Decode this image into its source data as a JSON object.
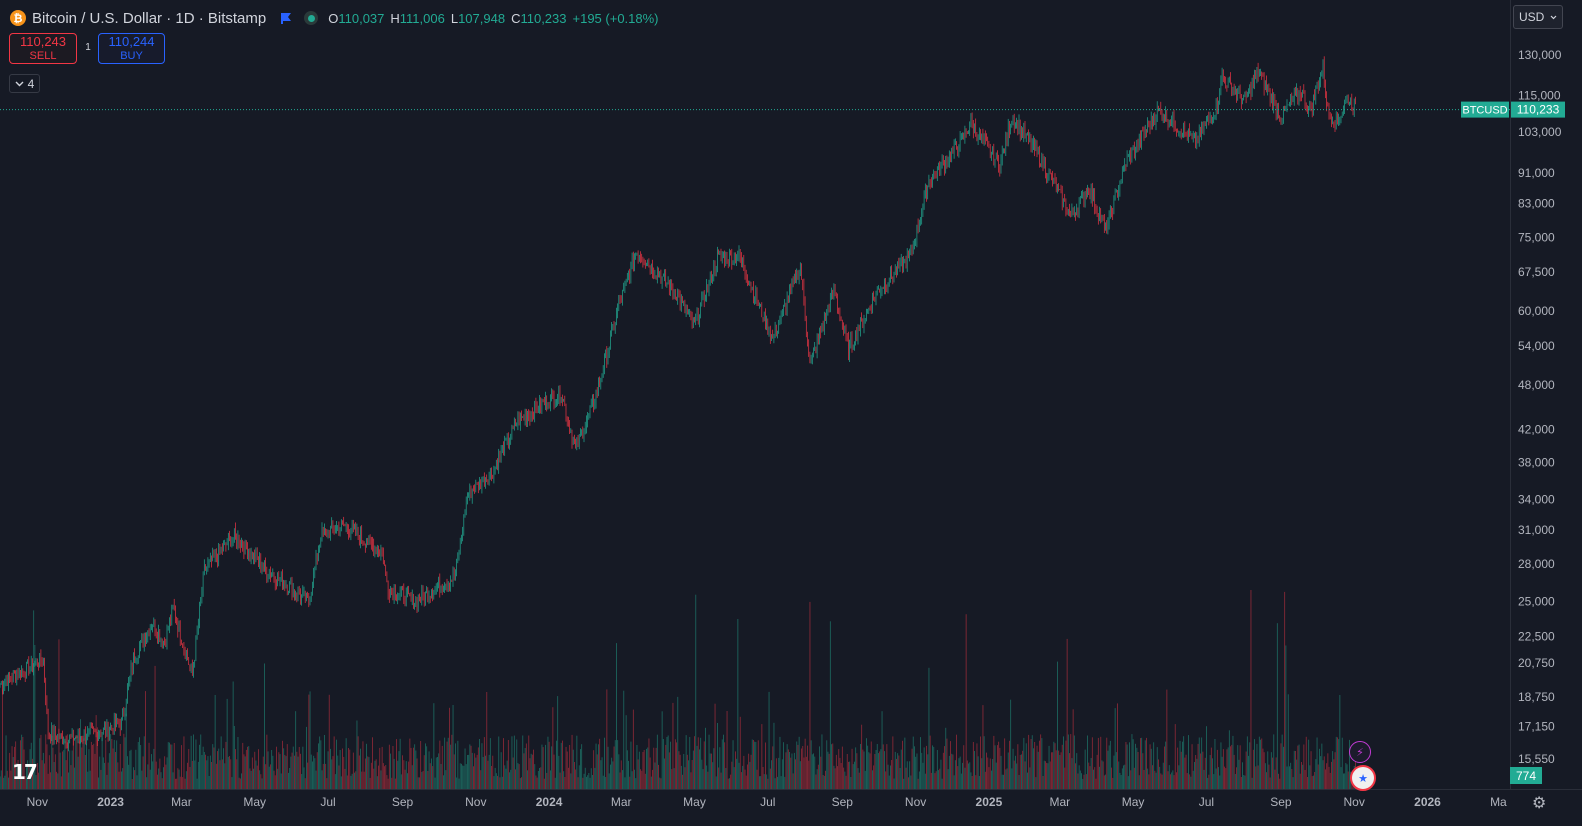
{
  "header": {
    "coin_icon": "bitcoin-icon",
    "symbol_title": "Bitcoin / U.S. Dollar · 1D · Bitstamp",
    "ohlc": {
      "o_label": "O",
      "o": "110,037",
      "h_label": "H",
      "h": "111,006",
      "l_label": "L",
      "l": "107,948",
      "c_label": "C",
      "c": "110,233",
      "change": "+195 (+0.18%)"
    },
    "up_color": "#22ab94",
    "down_color": "#f23645"
  },
  "trade": {
    "sell_price": "110,243",
    "sell_label": "SELL",
    "spread": "1",
    "buy_price": "110,244",
    "buy_label": "BUY"
  },
  "indicators_toggle": {
    "icon": "chevron-down-icon",
    "count": "4"
  },
  "currency_select": {
    "value": "USD"
  },
  "price_tags": {
    "symbol": "BTCUSD",
    "price": "110,233",
    "volume": "774"
  },
  "chart_data": {
    "type": "candlestick",
    "scale": "log",
    "ylim": [
      14500,
      136000
    ],
    "y_ticks": [
      "130,000",
      "115,000",
      "103,000",
      "91,000",
      "83,000",
      "75,000",
      "67,500",
      "60,000",
      "54,000",
      "48,000",
      "42,000",
      "38,000",
      "34,000",
      "31,000",
      "28,000",
      "25,000",
      "22,500",
      "20,750",
      "18,750",
      "17,150",
      "15,550"
    ],
    "x_ticks": [
      "Nov",
      "2023",
      "Mar",
      "May",
      "Jul",
      "Sep",
      "Nov",
      "2024",
      "Mar",
      "May",
      "Jul",
      "Sep",
      "Nov",
      "2025",
      "Mar",
      "May",
      "Jul",
      "Sep",
      "Nov",
      "2026",
      "Ma"
    ],
    "last_price": 110233,
    "volume_last": 774,
    "price_path": [
      [
        "2022-10-01",
        19500
      ],
      [
        "2022-10-25",
        20500
      ],
      [
        "2022-11-06",
        21000
      ],
      [
        "2022-11-10",
        16800
      ],
      [
        "2022-11-25",
        16500
      ],
      [
        "2022-12-20",
        16800
      ],
      [
        "2023-01-10",
        17300
      ],
      [
        "2023-01-20",
        21000
      ],
      [
        "2023-02-05",
        23500
      ],
      [
        "2023-02-15",
        22000
      ],
      [
        "2023-02-22",
        24500
      ],
      [
        "2023-03-10",
        20000
      ],
      [
        "2023-03-20",
        27500
      ],
      [
        "2023-04-14",
        30500
      ],
      [
        "2023-05-10",
        27500
      ],
      [
        "2023-06-15",
        25000
      ],
      [
        "2023-06-25",
        30500
      ],
      [
        "2023-07-13",
        31500
      ],
      [
        "2023-08-15",
        29000
      ],
      [
        "2023-08-20",
        26000
      ],
      [
        "2023-09-11",
        25000
      ],
      [
        "2023-10-15",
        27000
      ],
      [
        "2023-10-25",
        34500
      ],
      [
        "2023-11-15",
        37000
      ],
      [
        "2023-12-05",
        43000
      ],
      [
        "2024-01-11",
        47000
      ],
      [
        "2024-01-23",
        39500
      ],
      [
        "2024-02-10",
        47000
      ],
      [
        "2024-02-28",
        61000
      ],
      [
        "2024-03-14",
        72000
      ],
      [
        "2024-04-15",
        63500
      ],
      [
        "2024-05-01",
        57500
      ],
      [
        "2024-05-20",
        70500
      ],
      [
        "2024-06-07",
        71000
      ],
      [
        "2024-07-05",
        55000
      ],
      [
        "2024-07-28",
        69000
      ],
      [
        "2024-08-05",
        51000
      ],
      [
        "2024-08-25",
        64000
      ],
      [
        "2024-09-06",
        53500
      ],
      [
        "2024-10-01",
        64000
      ],
      [
        "2024-10-28",
        71000
      ],
      [
        "2024-11-12",
        89000
      ],
      [
        "2024-12-05",
        98000
      ],
      [
        "2024-12-17",
        106000
      ],
      [
        "2025-01-10",
        93000
      ],
      [
        "2025-01-20",
        108000
      ],
      [
        "2025-02-10",
        97000
      ],
      [
        "2025-03-10",
        80000
      ],
      [
        "2025-03-25",
        87000
      ],
      [
        "2025-04-08",
        76500
      ],
      [
        "2025-04-25",
        94000
      ],
      [
        "2025-05-22",
        110000
      ],
      [
        "2025-06-22",
        100000
      ],
      [
        "2025-07-10",
        112000
      ],
      [
        "2025-07-14",
        122000
      ],
      [
        "2025-08-02",
        113000
      ],
      [
        "2025-08-13",
        123500
      ],
      [
        "2025-09-01",
        108000
      ],
      [
        "2025-09-18",
        117000
      ],
      [
        "2025-09-25",
        109500
      ],
      [
        "2025-10-06",
        125500
      ],
      [
        "2025-10-10",
        110000
      ],
      [
        "2025-10-17",
        106000
      ],
      [
        "2025-10-27",
        114000
      ],
      [
        "2025-11-02",
        110233
      ]
    ]
  }
}
